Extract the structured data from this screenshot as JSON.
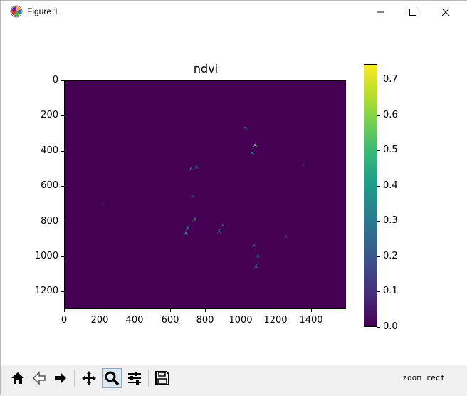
{
  "window": {
    "title": "Figure 1",
    "icon": "matplotlib-logo-icon",
    "controls": [
      "minimize-icon",
      "maximize-icon",
      "close-icon"
    ]
  },
  "plot": {
    "title": "ndvi",
    "type": "image",
    "colormap": "viridis",
    "y_ticks": [
      "0",
      "200",
      "400",
      "600",
      "800",
      "1000",
      "1200"
    ],
    "x_ticks": [
      "0",
      "200",
      "400",
      "600",
      "800",
      "1000",
      "1200",
      "1400"
    ],
    "colorbar_ticks": [
      "0.0",
      "0.1",
      "0.2",
      "0.3",
      "0.4",
      "0.5",
      "0.6",
      "0.7"
    ],
    "colorbar_range": [
      0.0,
      0.745
    ]
  },
  "chart_data": {
    "type": "heatmap",
    "title": "ndvi",
    "xlim": [
      0,
      1600
    ],
    "ylim": [
      1300,
      0
    ],
    "x_ticks": [
      0,
      200,
      400,
      600,
      800,
      1000,
      1200,
      1400
    ],
    "y_ticks": [
      0,
      200,
      400,
      600,
      800,
      1000,
      1200
    ],
    "colormap": "viridis",
    "color_range": [
      0.0,
      0.745
    ],
    "colorbar_ticks": [
      0.0,
      0.1,
      0.2,
      0.3,
      0.4,
      0.5,
      0.6,
      0.7
    ],
    "background_value": 0.0,
    "hotspots": [
      {
        "x": 1085,
        "y": 365,
        "value": 0.68
      },
      {
        "x": 1070,
        "y": 410,
        "value": 0.35
      },
      {
        "x": 1030,
        "y": 265,
        "value": 0.25
      },
      {
        "x": 720,
        "y": 500,
        "value": 0.3
      },
      {
        "x": 750,
        "y": 490,
        "value": 0.25
      },
      {
        "x": 730,
        "y": 660,
        "value": 0.15
      },
      {
        "x": 700,
        "y": 840,
        "value": 0.35
      },
      {
        "x": 740,
        "y": 790,
        "value": 0.5
      },
      {
        "x": 690,
        "y": 870,
        "value": 0.4
      },
      {
        "x": 880,
        "y": 860,
        "value": 0.3
      },
      {
        "x": 900,
        "y": 825,
        "value": 0.2
      },
      {
        "x": 1080,
        "y": 940,
        "value": 0.25
      },
      {
        "x": 1100,
        "y": 1000,
        "value": 0.3
      },
      {
        "x": 1090,
        "y": 1060,
        "value": 0.35
      },
      {
        "x": 1260,
        "y": 890,
        "value": 0.15
      },
      {
        "x": 1360,
        "y": 480,
        "value": 0.1
      },
      {
        "x": 220,
        "y": 700,
        "value": 0.1
      }
    ]
  },
  "toolbar": {
    "buttons": [
      {
        "name": "home-icon",
        "active": false
      },
      {
        "name": "back-icon",
        "active": false
      },
      {
        "name": "forward-icon",
        "active": false
      },
      {
        "name": "pan-icon",
        "active": false
      },
      {
        "name": "zoom-icon",
        "active": true
      },
      {
        "name": "subplots-icon",
        "active": false
      },
      {
        "name": "save-icon",
        "active": false
      }
    ],
    "status": "zoom rect"
  }
}
